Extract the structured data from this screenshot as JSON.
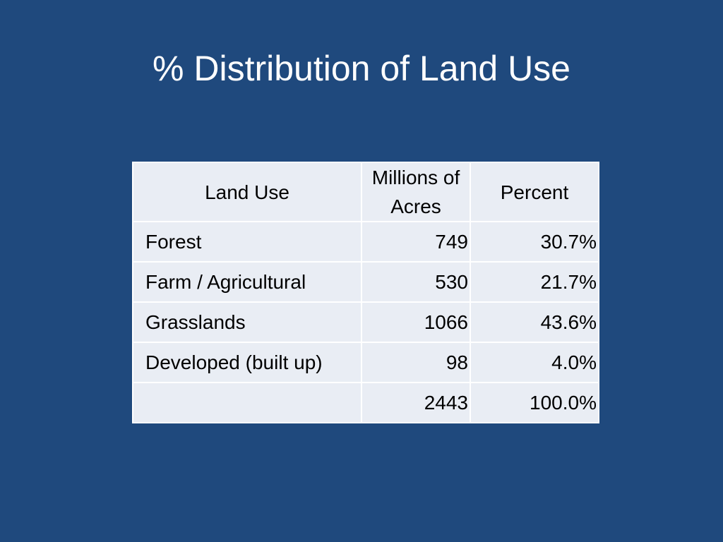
{
  "slide": {
    "title": "% Distribution of Land Use"
  },
  "table": {
    "headers": {
      "land_use": "Land Use",
      "millions_of_acres": "Millions of Acres",
      "percent": "Percent"
    },
    "rows": [
      {
        "land_use": "Forest",
        "millions_of_acres": "749",
        "percent": "30.7%"
      },
      {
        "land_use": "Farm / Agricultural",
        "millions_of_acres": "530",
        "percent": "21.7%"
      },
      {
        "land_use": "Grasslands",
        "millions_of_acres": "1066",
        "percent": "43.6%"
      },
      {
        "land_use": "Developed (built up)",
        "millions_of_acres": "98",
        "percent": "4.0%"
      },
      {
        "land_use": "",
        "millions_of_acres": "2443",
        "percent": "100.0%"
      }
    ]
  },
  "colors": {
    "background": "#1f497d",
    "table_cell": "#e9edf4",
    "title_text": "#ffffff"
  }
}
